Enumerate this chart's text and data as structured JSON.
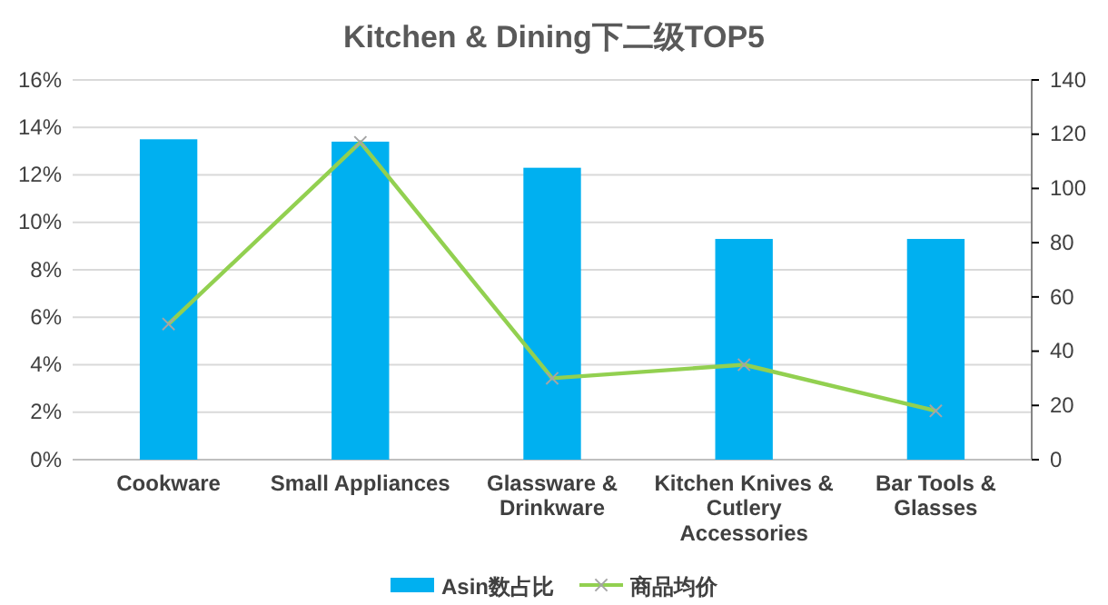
{
  "chart_data": {
    "type": "bar",
    "title": "Kitchen & Dining下二级TOP5",
    "categories": [
      "Cookware",
      "Small Appliances",
      "Glassware & Drinkware",
      "Kitchen Knives & Cutlery Accessories",
      "Bar Tools & Glasses"
    ],
    "series": [
      {
        "name": "Asin数占比",
        "color": "#00b0f0",
        "values": [
          13.5,
          13.4,
          12.3,
          9.3,
          9.3
        ]
      },
      {
        "name": "商品均价",
        "type": "line",
        "axis": "y2",
        "color": "#92d050",
        "marker": "cross",
        "values": [
          50,
          117,
          30,
          35,
          18
        ]
      }
    ],
    "ylim": [
      0,
      16
    ],
    "yticks": [
      {
        "value": 0,
        "label": "0%"
      },
      {
        "value": 2,
        "label": "2%"
      },
      {
        "value": 4,
        "label": "4%"
      },
      {
        "value": 6,
        "label": "6%"
      },
      {
        "value": 8,
        "label": "8%"
      },
      {
        "value": 10,
        "label": "10%"
      },
      {
        "value": 12,
        "label": "12%"
      },
      {
        "value": 14,
        "label": "14%"
      },
      {
        "value": 16,
        "label": "16%"
      }
    ],
    "y2lim": [
      0,
      140
    ],
    "y2ticks": [
      0,
      20,
      40,
      60,
      80,
      100,
      120,
      140
    ],
    "grid": "y",
    "legend": "bottom"
  }
}
